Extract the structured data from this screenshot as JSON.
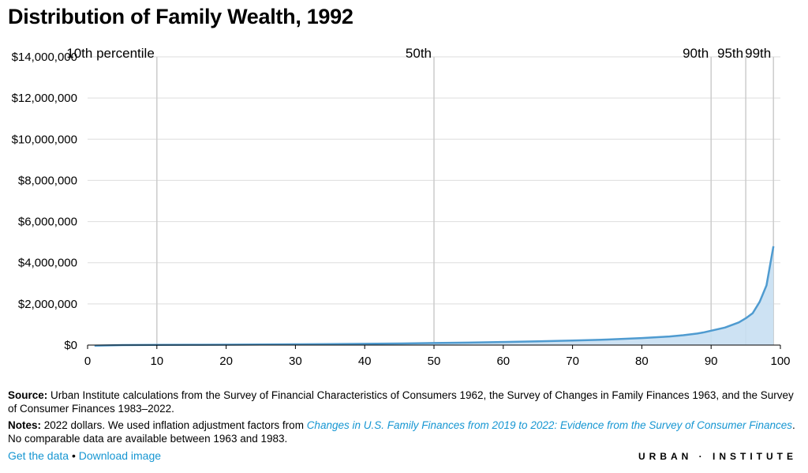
{
  "header": {
    "title": "Distribution of Family Wealth, 1992"
  },
  "chart_data": {
    "type": "area",
    "title": "Distribution of Family Wealth, 1992",
    "xlabel": "",
    "ylabel": "",
    "xlim": [
      0,
      100
    ],
    "ylim": [
      0,
      14000000
    ],
    "x_ticks": [
      0,
      10,
      20,
      30,
      40,
      50,
      60,
      70,
      80,
      90,
      100
    ],
    "x_tick_labels": [
      "0",
      "10",
      "20",
      "30",
      "40",
      "50",
      "60",
      "70",
      "80",
      "90",
      "100"
    ],
    "y_ticks": [
      0,
      2000000,
      4000000,
      6000000,
      8000000,
      10000000,
      12000000,
      14000000
    ],
    "y_tick_labels": [
      "$0",
      "$2,000,000",
      "$4,000,000",
      "$6,000,000",
      "$8,000,000",
      "$10,000,000",
      "$12,000,000",
      "$14,000,000"
    ],
    "grid": true,
    "percentile_markers": [
      {
        "x": 10,
        "label": "10th percentile"
      },
      {
        "x": 50,
        "label": "50th"
      },
      {
        "x": 90,
        "label": "90th"
      },
      {
        "x": 95,
        "label": "95th"
      },
      {
        "x": 99,
        "label": "99th"
      }
    ],
    "series": [
      {
        "x": [
          1,
          5,
          10,
          15,
          20,
          25,
          30,
          35,
          40,
          45,
          50,
          55,
          60,
          65,
          70,
          75,
          80,
          82,
          84,
          86,
          88,
          89,
          90,
          92,
          94,
          95,
          96,
          97,
          98,
          99
        ],
        "values": [
          -30000,
          0,
          10000,
          15000,
          20000,
          30000,
          40000,
          50000,
          60000,
          75000,
          100000,
          120000,
          150000,
          180000,
          220000,
          270000,
          340000,
          380000,
          420000,
          480000,
          560000,
          620000,
          700000,
          850000,
          1100000,
          1300000,
          1550000,
          2100000,
          2900000,
          4800000
        ]
      }
    ],
    "colors": {
      "line": "#4f9bd0",
      "fill": "#c8dff2",
      "grid": "#dddddd",
      "marker": "#cccccc"
    }
  },
  "notes": {
    "source_label": "Source:",
    "source_text": " Urban Institute calculations from the Survey of Financial Characteristics of Consumers 1962, the Survey of Changes in Family Finances 1963, and the Survey of Consumer Finances 1983–2022.",
    "notes_label": "Notes:",
    "notes_text_before": " 2022 dollars. We used inflation adjustment factors from ",
    "notes_link": "Changes in U.S. Family Finances from 2019 to 2022: Evidence from the Survey of Consumer Finances",
    "notes_text_after": ". No comparable data are available between 1963 and 1983."
  },
  "footer": {
    "get_data": "Get the data",
    "separator": "•",
    "download": "Download image",
    "brand": "URBAN · INSTITUTE"
  }
}
